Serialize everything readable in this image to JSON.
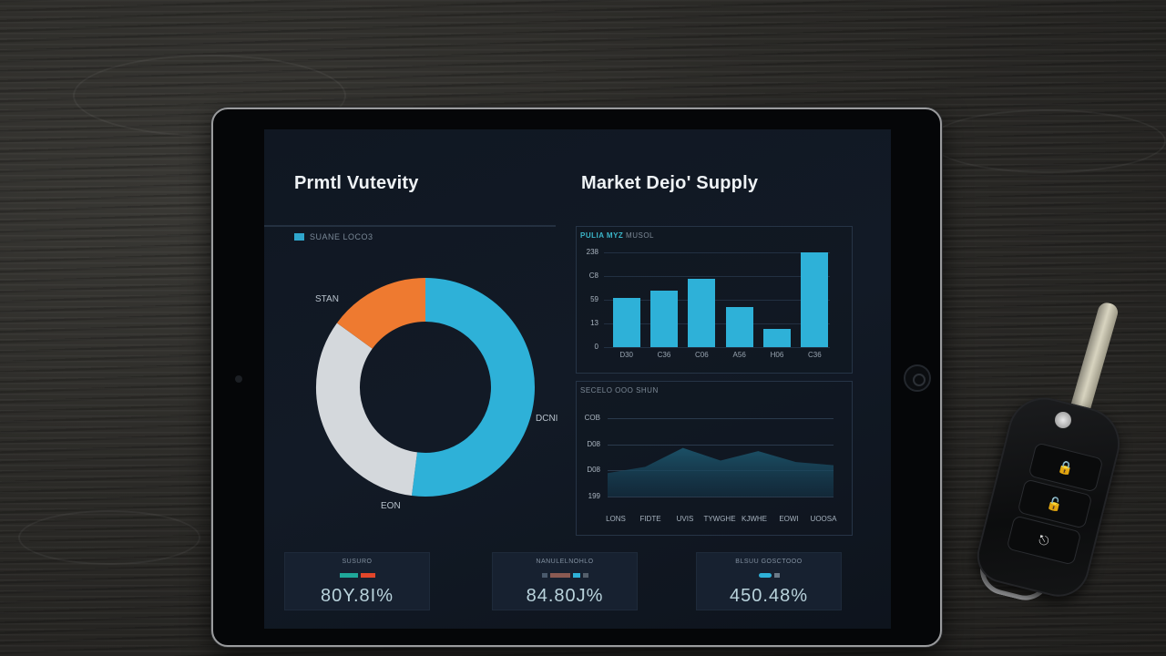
{
  "screen": {
    "left_title": "Prmtl Vutevity",
    "right_title": "Market Dejo' Supply",
    "donut_legend": "SUANE LOCO3"
  },
  "colors": {
    "accent_blue": "#2eb1d8",
    "accent_orange": "#ee7a30",
    "ring_gray": "#d4d8dc",
    "screen_bg": "#111923",
    "teal_text": "#3bb6c9"
  },
  "chart_data": [
    {
      "type": "pie",
      "title": "Prmtl Vutevity",
      "legend": [
        "SUANE LOCO3"
      ],
      "categories": [
        "DCNI",
        "EON",
        "STAN"
      ],
      "values": [
        52,
        33,
        15
      ],
      "colors": [
        "#2eb1d8",
        "#d4d8dc",
        "#ee7a30"
      ],
      "donut": true
    },
    {
      "type": "bar",
      "title": "PULIA MYZ",
      "subtitle": "MUSOL",
      "categories": [
        "D30",
        "C36",
        "C06",
        "A56",
        "H06",
        "C36"
      ],
      "values": [
        52,
        60,
        72,
        42,
        19,
        100
      ],
      "ytick_labels": [
        "0",
        "13",
        "59",
        "C8",
        "238"
      ],
      "ylabel": "",
      "xlabel": "",
      "grid": true
    },
    {
      "type": "area",
      "title": "SECELO OOO",
      "subtitle": "SHUN",
      "categories": [
        "LONS",
        "FIDTE",
        "UVIS",
        "TYWGHE",
        "KJWHE",
        "EOWI",
        "UOOSA"
      ],
      "values": [
        30,
        38,
        62,
        46,
        58,
        44,
        40
      ],
      "ytick_labels": [
        "199",
        "D08",
        "D08",
        "COB"
      ],
      "grid": true
    }
  ],
  "donut": {
    "labels": {
      "top_left": "STAN",
      "right": "DCNI",
      "bottom": "EON"
    }
  },
  "bar_chart": {
    "header_accent": "PULIA MYZ",
    "header_muted": "MUSOL",
    "yticks": [
      "238",
      "C8",
      "59",
      "13",
      "0"
    ],
    "xticks": [
      "D30",
      "C36",
      "C06",
      "A56",
      "H06",
      "C36"
    ]
  },
  "area_chart": {
    "header": "SECELO OOO SHUN",
    "yticks": [
      "COB",
      "D08",
      "D08",
      "199"
    ],
    "xticks": [
      "LONS",
      "FIDTE",
      "UVIS",
      "TYWGHE",
      "KJWHE",
      "EOWI",
      "UOOSA"
    ]
  },
  "stats": [
    {
      "label": "SUSURO",
      "value": "80Y.8I%"
    },
    {
      "label": "NANULELNOHLO",
      "value": "84.80J%"
    },
    {
      "label": "BLSUU GOSCTOOO",
      "value": "450.48%"
    }
  ],
  "key_fob": {
    "buttons": [
      "lock-icon",
      "unlock-icon",
      "trunk-icon"
    ]
  }
}
